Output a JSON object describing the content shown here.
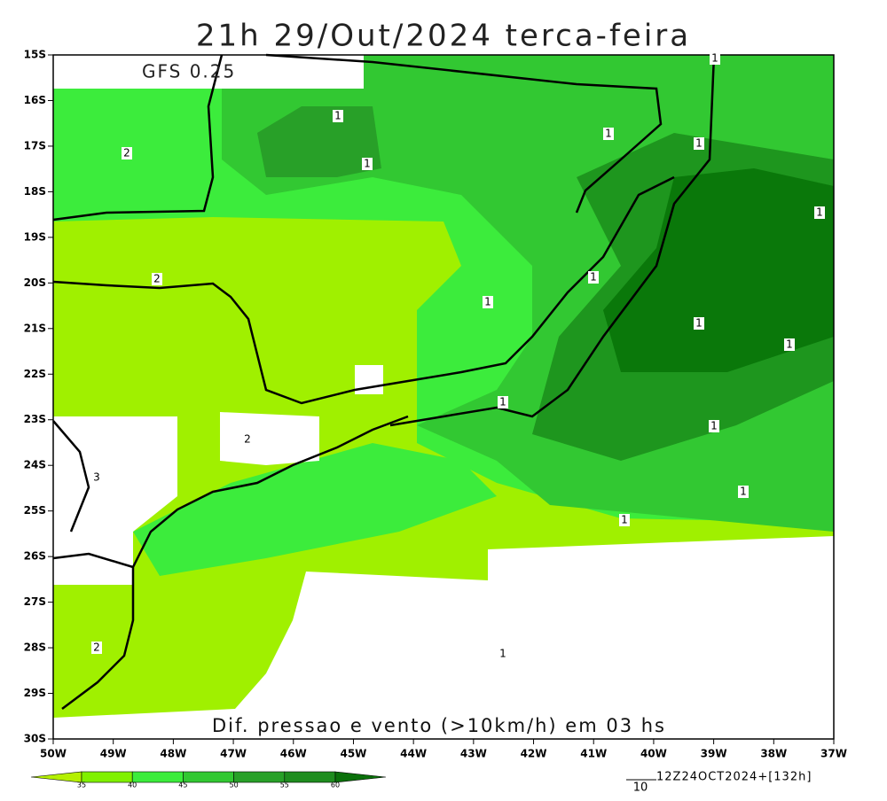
{
  "title": "21h 29/Out/2024 terca-feira",
  "model": "GFS 0.25",
  "caption": "Dif. pressao e vento (>10km/h) em 03 hs",
  "run_info": "12Z24OCT2024+[132h]",
  "wind_reference": "10",
  "xlim": [
    -50,
    -37
  ],
  "ylim": [
    -30,
    -15
  ],
  "lat_ticks": [
    {
      "value": -15,
      "label": "15S"
    },
    {
      "value": -16,
      "label": "16S"
    },
    {
      "value": -17,
      "label": "17S"
    },
    {
      "value": -18,
      "label": "18S"
    },
    {
      "value": -19,
      "label": "19S"
    },
    {
      "value": -20,
      "label": "20S"
    },
    {
      "value": -21,
      "label": "21S"
    },
    {
      "value": -22,
      "label": "22S"
    },
    {
      "value": -23,
      "label": "23S"
    },
    {
      "value": -24,
      "label": "24S"
    },
    {
      "value": -25,
      "label": "25S"
    },
    {
      "value": -26,
      "label": "26S"
    },
    {
      "value": -27,
      "label": "27S"
    },
    {
      "value": -28,
      "label": "28S"
    },
    {
      "value": -29,
      "label": "29S"
    },
    {
      "value": -30,
      "label": "30S"
    }
  ],
  "lon_ticks": [
    {
      "value": -50,
      "label": "50W"
    },
    {
      "value": -49,
      "label": "49W"
    },
    {
      "value": -48,
      "label": "48W"
    },
    {
      "value": -47,
      "label": "47W"
    },
    {
      "value": -46,
      "label": "46W"
    },
    {
      "value": -45,
      "label": "45W"
    },
    {
      "value": -44,
      "label": "44W"
    },
    {
      "value": -43,
      "label": "43W"
    },
    {
      "value": -42,
      "label": "42W"
    },
    {
      "value": -41,
      "label": "41W"
    },
    {
      "value": -40,
      "label": "40W"
    },
    {
      "value": -39,
      "label": "39W"
    },
    {
      "value": -38,
      "label": "38W"
    },
    {
      "value": -37,
      "label": "37W"
    }
  ],
  "colorbar": {
    "levels": [
      35,
      40,
      45,
      50,
      55,
      60
    ],
    "colors": [
      "#b4f000",
      "#80f000",
      "#3cec3c",
      "#32c832",
      "#28a028",
      "#1e8c1e",
      "#0a700a"
    ]
  },
  "contour_labels": [
    "1",
    "1",
    "2",
    "1",
    "1",
    "1",
    "1",
    "2",
    "1",
    "1",
    "1",
    "1",
    "1",
    "1",
    "2",
    "3",
    "1",
    "1",
    "2",
    "1"
  ]
}
